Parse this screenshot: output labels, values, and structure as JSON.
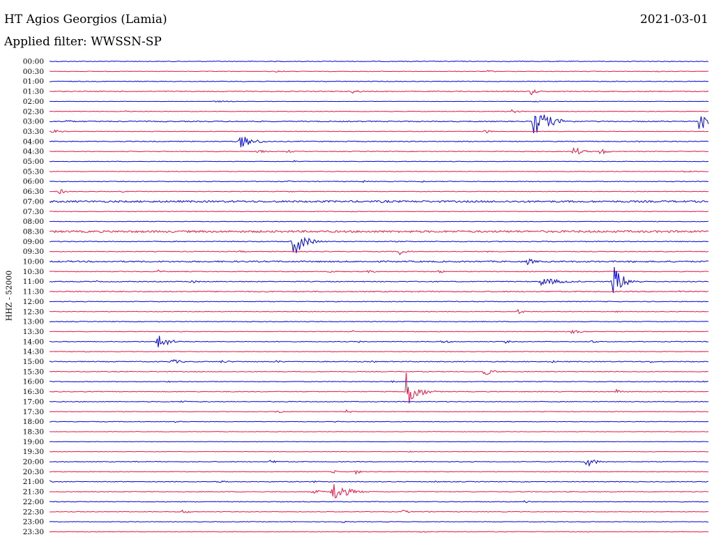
{
  "header": {
    "station": "HT Agios Georgios (Lamia)",
    "filter": "Applied filter: WWSSN-SP",
    "date": "2021-03-01",
    "channel": "HHZ - 52000"
  },
  "chart_data": {
    "type": "line",
    "title": "HT Agios Georgios (Lamia)",
    "subtitle": "Applied filter: WWSSN-SP",
    "ylabel": "HHZ - 52000",
    "grid": false,
    "colors": [
      "#0000dd",
      "#ee1144"
    ],
    "rows": [
      {
        "label": "00:00",
        "noise": 0.5,
        "events": []
      },
      {
        "label": "00:30",
        "noise": 0.4,
        "events": [
          {
            "t": 0.345,
            "a": 2.0,
            "d": 0.012
          },
          {
            "t": 0.665,
            "a": 1.8,
            "d": 0.01
          },
          {
            "t": 0.92,
            "a": 1.8,
            "d": 0.01
          }
        ]
      },
      {
        "label": "01:00",
        "noise": 0.5,
        "events": []
      },
      {
        "label": "01:30",
        "noise": 0.6,
        "events": [
          {
            "t": 0.46,
            "a": 3.0,
            "d": 0.012
          },
          {
            "t": 0.73,
            "a": 6.0,
            "d": 0.008
          }
        ]
      },
      {
        "label": "02:00",
        "noise": 0.3,
        "events": [
          {
            "t": 0.25,
            "a": 1.2,
            "d": 0.03
          },
          {
            "t": 0.735,
            "a": 1.5,
            "d": 0.01
          }
        ]
      },
      {
        "label": "02:30",
        "noise": 0.4,
        "events": [
          {
            "t": 0.115,
            "a": 1.2,
            "d": 0.01
          },
          {
            "t": 0.7,
            "a": 3.0,
            "d": 0.012
          }
        ]
      },
      {
        "label": "03:00",
        "noise": 0.7,
        "events": [
          {
            "t": 0.025,
            "a": 2.5,
            "d": 0.012
          },
          {
            "t": 0.735,
            "a": 22.0,
            "d": 0.02
          },
          {
            "t": 0.985,
            "a": 18.0,
            "d": 0.012
          }
        ]
      },
      {
        "label": "03:30",
        "noise": 0.4,
        "events": [
          {
            "t": 0.005,
            "a": 3.0,
            "d": 0.012
          },
          {
            "t": 0.66,
            "a": 3.0,
            "d": 0.01
          }
        ]
      },
      {
        "label": "04:00",
        "noise": 0.6,
        "events": [
          {
            "t": 0.29,
            "a": 10.0,
            "d": 0.018
          },
          {
            "t": 0.89,
            "a": 1.5,
            "d": 0.01
          }
        ]
      },
      {
        "label": "04:30",
        "noise": 0.5,
        "events": [
          {
            "t": 0.315,
            "a": 3.0,
            "d": 0.012
          },
          {
            "t": 0.36,
            "a": 2.5,
            "d": 0.01
          },
          {
            "t": 0.795,
            "a": 7.0,
            "d": 0.012
          },
          {
            "t": 0.835,
            "a": 6.0,
            "d": 0.008
          }
        ]
      },
      {
        "label": "05:00",
        "noise": 0.4,
        "events": [
          {
            "t": 0.37,
            "a": 1.5,
            "d": 0.01
          }
        ]
      },
      {
        "label": "05:30",
        "noise": 0.4,
        "events": [
          {
            "t": 0.96,
            "a": 1.5,
            "d": 0.02
          }
        ]
      },
      {
        "label": "06:00",
        "noise": 0.5,
        "events": [
          {
            "t": 0.36,
            "a": 2.0,
            "d": 0.006
          },
          {
            "t": 0.475,
            "a": 1.8,
            "d": 0.008
          },
          {
            "t": 0.565,
            "a": 2.0,
            "d": 0.006
          }
        ]
      },
      {
        "label": "06:30",
        "noise": 0.4,
        "events": [
          {
            "t": 0.015,
            "a": 4.0,
            "d": 0.01
          },
          {
            "t": 0.11,
            "a": 1.5,
            "d": 0.01
          },
          {
            "t": 0.365,
            "a": 1.5,
            "d": 0.006
          }
        ]
      },
      {
        "label": "07:00",
        "noise": 1.3,
        "events": [
          {
            "t": 0.5,
            "a": 1.8,
            "d": 0.08
          }
        ]
      },
      {
        "label": "07:30",
        "noise": 0.4,
        "events": [
          {
            "t": 0.46,
            "a": 1.5,
            "d": 0.005
          }
        ]
      },
      {
        "label": "08:00",
        "noise": 0.4,
        "events": []
      },
      {
        "label": "08:30",
        "noise": 1.4,
        "events": []
      },
      {
        "label": "09:00",
        "noise": 0.6,
        "events": [
          {
            "t": 0.37,
            "a": 22.0,
            "d": 0.015
          }
        ]
      },
      {
        "label": "09:30",
        "noise": 0.5,
        "events": [
          {
            "t": 0.29,
            "a": 2.0,
            "d": 0.008
          },
          {
            "t": 0.53,
            "a": 6.0,
            "d": 0.01
          },
          {
            "t": 0.665,
            "a": 1.5,
            "d": 0.008
          }
        ]
      },
      {
        "label": "10:00",
        "noise": 1.0,
        "events": [
          {
            "t": 0.725,
            "a": 5.0,
            "d": 0.012
          },
          {
            "t": 0.885,
            "a": 1.5,
            "d": 0.01
          }
        ]
      },
      {
        "label": "10:30",
        "noise": 0.5,
        "events": [
          {
            "t": 0.165,
            "a": 2.5,
            "d": 0.01
          },
          {
            "t": 0.42,
            "a": 2.0,
            "d": 0.02
          },
          {
            "t": 0.48,
            "a": 2.0,
            "d": 0.02
          },
          {
            "t": 0.59,
            "a": 3.0,
            "d": 0.008
          }
        ]
      },
      {
        "label": "11:00",
        "noise": 0.6,
        "events": [
          {
            "t": 0.07,
            "a": 1.5,
            "d": 0.01
          },
          {
            "t": 0.215,
            "a": 3.0,
            "d": 0.01
          },
          {
            "t": 0.745,
            "a": 6.0,
            "d": 0.03
          },
          {
            "t": 0.855,
            "a": 24.0,
            "d": 0.014
          }
        ]
      },
      {
        "label": "11:30",
        "noise": 0.7,
        "events": [
          {
            "t": 0.955,
            "a": 1.5,
            "d": 0.01
          }
        ]
      },
      {
        "label": "12:00",
        "noise": 0.5,
        "events": []
      },
      {
        "label": "12:30",
        "noise": 0.4,
        "events": [
          {
            "t": 0.545,
            "a": 1.5,
            "d": 0.005
          },
          {
            "t": 0.71,
            "a": 4.0,
            "d": 0.008
          },
          {
            "t": 0.86,
            "a": 1.5,
            "d": 0.008
          }
        ]
      },
      {
        "label": "13:00",
        "noise": 0.5,
        "events": []
      },
      {
        "label": "13:30",
        "noise": 0.4,
        "events": [
          {
            "t": 0.46,
            "a": 1.5,
            "d": 0.005
          },
          {
            "t": 0.79,
            "a": 3.5,
            "d": 0.015
          }
        ]
      },
      {
        "label": "14:00",
        "noise": 0.5,
        "events": [
          {
            "t": 0.165,
            "a": 12.0,
            "d": 0.014
          },
          {
            "t": 0.47,
            "a": 2.0,
            "d": 0.005
          },
          {
            "t": 0.595,
            "a": 3.5,
            "d": 0.01
          },
          {
            "t": 0.69,
            "a": 3.0,
            "d": 0.008
          },
          {
            "t": 0.82,
            "a": 3.0,
            "d": 0.008
          }
        ]
      },
      {
        "label": "14:30",
        "noise": 0.4,
        "events": [
          {
            "t": 0.055,
            "a": 1.5,
            "d": 0.006
          }
        ]
      },
      {
        "label": "15:00",
        "noise": 0.6,
        "events": [
          {
            "t": 0.185,
            "a": 4.0,
            "d": 0.014
          },
          {
            "t": 0.26,
            "a": 2.0,
            "d": 0.02
          },
          {
            "t": 0.345,
            "a": 2.0,
            "d": 0.01
          },
          {
            "t": 0.49,
            "a": 1.5,
            "d": 0.01
          },
          {
            "t": 0.76,
            "a": 2.5,
            "d": 0.01
          },
          {
            "t": 0.91,
            "a": 2.0,
            "d": 0.01
          }
        ]
      },
      {
        "label": "15:30",
        "noise": 0.5,
        "events": [
          {
            "t": 0.66,
            "a": 6.0,
            "d": 0.012
          }
        ]
      },
      {
        "label": "16:00",
        "noise": 0.5,
        "events": [
          {
            "t": 0.18,
            "a": 1.5,
            "d": 0.005
          },
          {
            "t": 0.52,
            "a": 1.5,
            "d": 0.008
          },
          {
            "t": 0.985,
            "a": 2.0,
            "d": 0.008
          }
        ]
      },
      {
        "label": "16:30",
        "noise": 0.5,
        "events": [
          {
            "t": 0.54,
            "a": 30.0,
            "d": 0.014
          },
          {
            "t": 0.86,
            "a": 4.0,
            "d": 0.01
          }
        ]
      },
      {
        "label": "17:00",
        "noise": 0.5,
        "events": [
          {
            "t": 0.2,
            "a": 2.0,
            "d": 0.01
          }
        ]
      },
      {
        "label": "17:30",
        "noise": 0.4,
        "events": [
          {
            "t": 0.345,
            "a": 2.5,
            "d": 0.014
          },
          {
            "t": 0.45,
            "a": 3.0,
            "d": 0.008
          }
        ]
      },
      {
        "label": "18:00",
        "noise": 0.4,
        "events": [
          {
            "t": 0.19,
            "a": 2.0,
            "d": 0.012
          },
          {
            "t": 0.435,
            "a": 2.0,
            "d": 0.008
          }
        ]
      },
      {
        "label": "18:30",
        "noise": 0.3,
        "events": []
      },
      {
        "label": "19:00",
        "noise": 0.3,
        "events": []
      },
      {
        "label": "19:30",
        "noise": 0.3,
        "events": [
          {
            "t": 0.545,
            "a": 1.2,
            "d": 0.008
          }
        ]
      },
      {
        "label": "20:00",
        "noise": 0.5,
        "events": [
          {
            "t": 0.13,
            "a": 1.5,
            "d": 0.006
          },
          {
            "t": 0.335,
            "a": 3.0,
            "d": 0.01
          },
          {
            "t": 0.815,
            "a": 8.0,
            "d": 0.012
          }
        ]
      },
      {
        "label": "20:30",
        "noise": 0.4,
        "events": [
          {
            "t": 0.43,
            "a": 3.0,
            "d": 0.005
          },
          {
            "t": 0.465,
            "a": 4.0,
            "d": 0.006
          }
        ]
      },
      {
        "label": "21:00",
        "noise": 0.5,
        "events": [
          {
            "t": 0.0,
            "a": 2.0,
            "d": 0.006
          },
          {
            "t": 0.255,
            "a": 2.0,
            "d": 0.014
          },
          {
            "t": 0.4,
            "a": 1.5,
            "d": 0.01
          },
          {
            "t": 0.585,
            "a": 1.5,
            "d": 0.008
          }
        ]
      },
      {
        "label": "21:30",
        "noise": 0.5,
        "events": [
          {
            "t": 0.4,
            "a": 3.0,
            "d": 0.015
          },
          {
            "t": 0.43,
            "a": 16.0,
            "d": 0.018
          }
        ]
      },
      {
        "label": "22:00",
        "noise": 0.5,
        "events": [
          {
            "t": 0.72,
            "a": 2.5,
            "d": 0.008
          }
        ]
      },
      {
        "label": "22:30",
        "noise": 0.4,
        "events": [
          {
            "t": 0.2,
            "a": 4.0,
            "d": 0.01
          },
          {
            "t": 0.535,
            "a": 3.0,
            "d": 0.01
          },
          {
            "t": 0.57,
            "a": 1.5,
            "d": 0.008
          }
        ]
      },
      {
        "label": "23:00",
        "noise": 0.4,
        "events": [
          {
            "t": 0.445,
            "a": 1.5,
            "d": 0.006
          }
        ]
      },
      {
        "label": "23:30",
        "noise": 0.4,
        "events": [
          {
            "t": 0.565,
            "a": 2.0,
            "d": 0.006
          }
        ]
      }
    ]
  }
}
